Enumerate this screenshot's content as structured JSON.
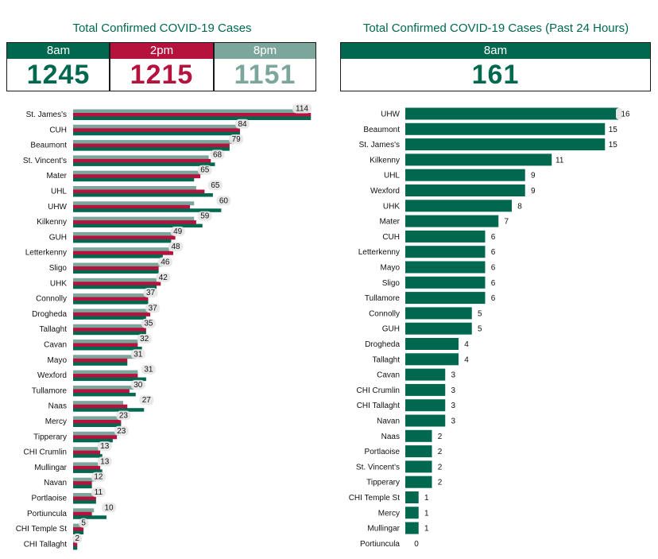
{
  "left_panel": {
    "title": "Total Confirmed COVID-19 Cases",
    "boxes": [
      {
        "time": "8am",
        "value": "1245",
        "head_color": "#00684f",
        "value_color": "#00684f"
      },
      {
        "time": "2pm",
        "value": "1215",
        "head_color": "#b5123e",
        "value_color": "#b5123e"
      },
      {
        "time": "8pm",
        "value": "1151",
        "head_color": "#7ca69c",
        "value_color": "#7ca69c"
      }
    ]
  },
  "right_panel": {
    "title": "Total Confirmed COVID-19 Cases (Past 24 Hours)",
    "box": {
      "time": "8am",
      "value": "161",
      "head_color": "#00684f",
      "value_color": "#00684f"
    }
  },
  "colors": {
    "8am": "#00684f",
    "2pm": "#b5123e",
    "8pm": "#7ca69c",
    "label_bg": "#e6e6e6"
  },
  "chart_data": [
    {
      "type": "bar",
      "orientation": "horizontal",
      "categories": [
        "St. James's",
        "CUH",
        "Beaumont",
        "St. Vincent's",
        "Mater",
        "UHL",
        "UHW",
        "Kilkenny",
        "GUH",
        "Letterkenny",
        "Sligo",
        "UHK",
        "Connolly",
        "Drogheda",
        "Tallaght",
        "Cavan",
        "Mayo",
        "Wexford",
        "Tullamore",
        "Naas",
        "Mercy",
        "Tipperary",
        "CHI Crumlin",
        "Mullingar",
        "Navan",
        "Portlaoise",
        "Portiuncula",
        "CHI Temple St",
        "CHI Tallaght"
      ],
      "series": [
        {
          "name": "8pm",
          "values": [
            113,
            79,
            77,
            65,
            62,
            59,
            58,
            58,
            48,
            46,
            43,
            40,
            36,
            36,
            34,
            31,
            30,
            31,
            29,
            24,
            22,
            22,
            12,
            12,
            11,
            10,
            10,
            5,
            2
          ]
        },
        {
          "name": "2pm",
          "values": [
            114,
            80,
            75,
            66,
            61,
            63,
            56,
            59,
            49,
            48,
            41,
            42,
            36,
            37,
            35,
            31,
            26,
            31,
            27,
            26,
            23,
            21,
            13,
            13,
            9,
            11,
            9,
            5,
            2
          ]
        },
        {
          "name": "8am",
          "values": [
            114,
            80,
            75,
            68,
            58,
            67,
            71,
            62,
            47,
            43,
            41,
            40,
            36,
            35,
            35,
            33,
            26,
            35,
            30,
            34,
            23,
            19,
            14,
            14,
            9,
            11,
            16,
            5,
            2
          ]
        }
      ],
      "data_labels": [
        114,
        84,
        79,
        68,
        65,
        65,
        60,
        59,
        49,
        48,
        46,
        42,
        37,
        37,
        35,
        32,
        31,
        31,
        30,
        27,
        23,
        23,
        13,
        13,
        12,
        11,
        10,
        5,
        2
      ],
      "xlim": [
        0,
        114
      ]
    },
    {
      "type": "bar",
      "orientation": "horizontal",
      "categories": [
        "UHW",
        "Beaumont",
        "St. James's",
        "Kilkenny",
        "UHL",
        "Wexford",
        "UHK",
        "Mater",
        "CUH",
        "Letterkenny",
        "Mayo",
        "Sligo",
        "Tullamore",
        "Connolly",
        "GUH",
        "Drogheda",
        "Tallaght",
        "Cavan",
        "CHI Crumlin",
        "CHI Tallaght",
        "Navan",
        "Naas",
        "Portlaoise",
        "St. Vincent's",
        "Tipperary",
        "CHI Temple St",
        "Mercy",
        "Mullingar",
        "Portiuncula"
      ],
      "series": [
        {
          "name": "8am",
          "values": [
            16,
            15,
            15,
            11,
            9,
            9,
            8,
            7,
            6,
            6,
            6,
            6,
            6,
            5,
            5,
            4,
            4,
            3,
            3,
            3,
            3,
            2,
            2,
            2,
            2,
            1,
            1,
            1,
            0
          ]
        }
      ],
      "xlim": [
        0,
        16
      ]
    }
  ]
}
